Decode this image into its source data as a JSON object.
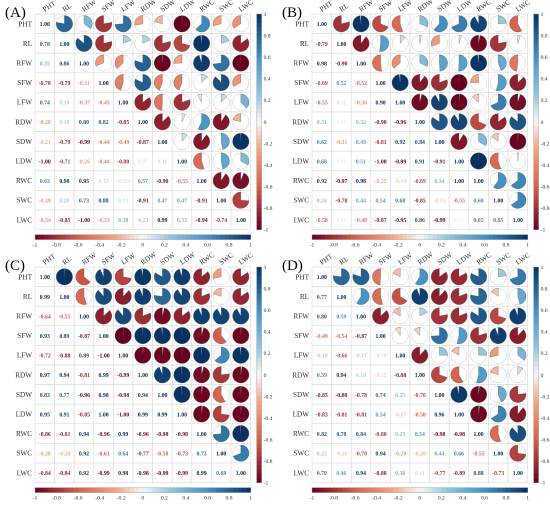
{
  "figure": {
    "colors": {
      "negative": "#67001f",
      "neutral": "#f7f7f7",
      "positive": "#053061",
      "grid": "#d9d9d9",
      "label": "#303030"
    }
  },
  "chart_data": [
    {
      "type": "heatmap",
      "panel_label": "(A)",
      "title": "",
      "variables": [
        "PHT",
        "RL",
        "RFW",
        "SFW",
        "LFW",
        "RDW",
        "SDW",
        "LDW",
        "RWC",
        "SWC",
        "LWC"
      ],
      "colorbar": {
        "range": [
          -1,
          1
        ],
        "ticks": [
          "-1",
          "-0.8",
          "-0.6",
          "-0.4",
          "-0.2",
          "0",
          "0.2",
          "0.4",
          "0.6",
          "0.8",
          "1"
        ]
      },
      "lower_triangle": "numbers",
      "upper_triangle": "pie",
      "matrix": [
        [
          1.0,
          0.78,
          0.35,
          -0.78,
          0.74,
          -0.28,
          -0.21,
          -1.0,
          0.63,
          -0.29,
          -0.34
        ],
        [
          0.78,
          1.0,
          0.86,
          -0.79,
          0.19,
          0.18,
          -0.79,
          -0.71,
          0.98,
          0.2,
          -0.85
        ],
        [
          0.35,
          0.86,
          1.0,
          -0.31,
          -0.37,
          0.8,
          -0.99,
          -0.26,
          0.95,
          0.73,
          -1.0
        ],
        [
          -0.78,
          -0.79,
          -0.31,
          1.0,
          -0.45,
          0.82,
          -0.44,
          -0.44,
          0.13,
          0.88,
          -0.33
        ],
        [
          0.74,
          0.19,
          -0.37,
          -0.45,
          1.0,
          -0.85,
          -0.49,
          -0.8,
          -0.08,
          0.13,
          0.38
        ],
        [
          -0.28,
          0.18,
          0.8,
          0.82,
          -0.85,
          1.0,
          -0.87,
          0.07,
          0.57,
          -0.91,
          -0.21
        ],
        [
          -0.21,
          -0.79,
          -0.99,
          -0.44,
          -0.49,
          -0.87,
          1.0,
          0.11,
          -0.9,
          0.47,
          0.99
        ],
        [
          -1.0,
          -0.71,
          -0.26,
          -0.44,
          -0.8,
          0.07,
          0.11,
          1.0,
          -0.55,
          0.47,
          0.33
        ],
        [
          0.63,
          0.98,
          0.95,
          0.13,
          -0.08,
          0.57,
          -0.9,
          -0.55,
          1.0,
          -0.91,
          -0.94
        ],
        [
          -0.29,
          0.2,
          0.73,
          0.88,
          0.13,
          -0.91,
          0.47,
          0.47,
          -0.91,
          1.0,
          -0.74
        ],
        [
          -0.34,
          -0.85,
          -1.0,
          -0.33,
          0.38,
          -0.21,
          0.99,
          0.33,
          -0.94,
          -0.74,
          1.0
        ]
      ]
    },
    {
      "type": "heatmap",
      "panel_label": "(B)",
      "title": "",
      "variables": [
        "PHT",
        "RL",
        "RFW",
        "SFW",
        "LFW",
        "RDW",
        "SDW",
        "LDW",
        "RWC",
        "SWC",
        "LWC"
      ],
      "colorbar": {
        "range": [
          -1,
          1
        ],
        "ticks": [
          "-1",
          "-0.8",
          "-0.6",
          "-0.4",
          "-0.2",
          "0",
          "0.2",
          "0.4",
          "0.6",
          "0.8",
          "1"
        ]
      },
      "lower_triangle": "numbers",
      "upper_triangle": "pie",
      "matrix": [
        [
          1.0,
          -0.79,
          0.98,
          -0.69,
          -0.55,
          0.31,
          0.62,
          0.68,
          0.92,
          0.24,
          -0.58
        ],
        [
          -0.79,
          1.0,
          -0.9,
          0.52,
          0.11,
          0.03,
          -0.31,
          0.05,
          -0.97,
          -0.78,
          0.05
        ],
        [
          0.98,
          -0.9,
          1.0,
          -0.52,
          -0.36,
          0.32,
          0.49,
          0.51,
          0.98,
          0.44,
          -0.48
        ],
        [
          -0.69,
          0.52,
          -0.52,
          1.0,
          0.98,
          -0.9,
          -0.81,
          -1.0,
          -0.25,
          0.54,
          -0.87
        ],
        [
          -0.55,
          0.11,
          -0.36,
          0.98,
          1.0,
          -0.96,
          0.92,
          -0.99,
          -0.14,
          0.68,
          -0.95
        ],
        [
          0.31,
          0.03,
          0.32,
          -0.9,
          -0.96,
          1.0,
          0.84,
          0.91,
          -0.69,
          -0.85,
          0.86
        ],
        [
          0.62,
          -0.31,
          0.49,
          -0.81,
          0.92,
          0.84,
          1.0,
          -0.91,
          0.34,
          -0.15,
          -0.99
        ],
        [
          0.68,
          0.05,
          0.51,
          -1.0,
          -0.99,
          0.91,
          -0.91,
          1.0,
          1.0,
          -0.55,
          0.02
        ],
        [
          0.92,
          -0.97,
          0.98,
          -0.25,
          -0.14,
          -0.69,
          0.34,
          1.0,
          1.0,
          0.6,
          0.65
        ],
        [
          0.24,
          -0.78,
          0.44,
          0.54,
          0.68,
          -0.85,
          -0.15,
          -0.55,
          0.6,
          1.0,
          0.65
        ],
        [
          -0.58,
          0.05,
          -0.48,
          -0.87,
          -0.95,
          0.86,
          -0.99,
          0.02,
          0.65,
          0.65,
          1.0
        ]
      ]
    },
    {
      "type": "heatmap",
      "panel_label": "(C)",
      "title": "",
      "variables": [
        "PHT",
        "RL",
        "RFW",
        "SFW",
        "LFW",
        "RDW",
        "SDW",
        "LDW",
        "RWC",
        "SWC",
        "LWC"
      ],
      "colorbar": {
        "range": [
          -1,
          1
        ],
        "ticks": [
          "-1",
          "-0.8",
          "-0.6",
          "-0.4",
          "-0.2",
          "0",
          "0.2",
          "0.4",
          "0.6",
          "0.8",
          "1"
        ]
      },
      "lower_triangle": "numbers",
      "upper_triangle": "pie",
      "matrix": [
        [
          1.0,
          0.99,
          -0.64,
          0.93,
          -0.72,
          0.97,
          0.83,
          0.95,
          -0.86,
          -0.28,
          -0.84
        ],
        [
          0.99,
          1.0,
          -0.55,
          0.89,
          -0.88,
          0.94,
          0.77,
          0.91,
          -0.81,
          -0.2,
          -0.84
        ],
        [
          -0.64,
          -0.55,
          1.0,
          -0.87,
          0.89,
          -0.81,
          -0.96,
          -0.85,
          0.94,
          0.92,
          0.92
        ],
        [
          0.93,
          0.89,
          -0.87,
          1.0,
          -1.0,
          0.99,
          0.98,
          1.0,
          -0.96,
          -0.61,
          -0.99
        ],
        [
          -0.72,
          -0.88,
          0.89,
          -1.0,
          1.0,
          -0.99,
          -0.98,
          -1.0,
          0.99,
          0.64,
          0.98
        ],
        [
          0.97,
          0.94,
          -0.81,
          0.99,
          -0.99,
          1.0,
          0.94,
          0.99,
          -0.96,
          -0.77,
          -0.98
        ],
        [
          0.83,
          0.77,
          -0.96,
          0.98,
          -0.98,
          0.94,
          1.0,
          0.99,
          -0.98,
          -0.58,
          -0.99
        ],
        [
          0.95,
          0.91,
          -0.85,
          1.0,
          -1.0,
          0.99,
          0.99,
          1.0,
          -0.98,
          -0.73,
          -0.99
        ],
        [
          -0.86,
          -0.81,
          0.94,
          -0.96,
          0.99,
          -0.96,
          -0.98,
          -0.98,
          1.0,
          0.73,
          0.99
        ],
        [
          -0.28,
          -0.2,
          0.92,
          -0.61,
          0.64,
          -0.77,
          -0.58,
          -0.73,
          0.73,
          1.0,
          0.69
        ],
        [
          -0.84,
          -0.84,
          0.92,
          -0.99,
          0.98,
          -0.98,
          -0.99,
          -0.99,
          0.99,
          0.69,
          1.0
        ]
      ]
    },
    {
      "type": "heatmap",
      "panel_label": "(D)",
      "title": "",
      "variables": [
        "PHT",
        "RL",
        "RFW",
        "SFW",
        "LFW",
        "RDW",
        "SDW",
        "LDW",
        "RWC",
        "SWC",
        "LWC"
      ],
      "colorbar": {
        "range": [
          -1,
          1
        ],
        "ticks": [
          "-1",
          "-0.8",
          "-0.6",
          "-0.4",
          "-0.2",
          "0",
          "0.2",
          "0.4",
          "0.6",
          "0.8",
          "1"
        ]
      },
      "lower_triangle": "numbers",
      "upper_triangle": "pie",
      "matrix": [
        [
          1.0,
          0.77,
          0.8,
          -0.49,
          -0.18,
          0.59,
          -0.85,
          -0.83,
          0.82,
          0.23,
          0.7
        ],
        [
          0.77,
          1.0,
          0.59,
          -0.54,
          -0.66,
          0.94,
          -0.88,
          -0.81,
          0.78,
          -0.16,
          0.46
        ],
        [
          0.8,
          0.59,
          1.0,
          -0.87,
          -0.17,
          0.18,
          -0.78,
          -0.81,
          0.84,
          -0.7,
          0.94
        ],
        [
          -0.49,
          -0.54,
          -0.87,
          1.0,
          -0.1,
          -0.12,
          0.74,
          0.54,
          -0.8,
          0.94,
          -0.88
        ],
        [
          -0.18,
          -0.66,
          -0.17,
          -0.1,
          1.0,
          -0.88,
          0.25,
          -0.17,
          0.25,
          -0.29,
          0.36
        ],
        [
          0.59,
          0.94,
          0.18,
          -0.12,
          -0.88,
          1.0,
          -0.7,
          -0.58,
          0.54,
          -0.2,
          0.11
        ],
        [
          -0.85,
          -0.88,
          -0.78,
          0.74,
          0.25,
          -0.7,
          1.0,
          0.96,
          -0.98,
          0.44,
          -0.77
        ],
        [
          -0.83,
          -0.81,
          -0.81,
          0.54,
          -0.17,
          -0.58,
          0.96,
          1.0,
          -0.98,
          0.66,
          -0.89
        ],
        [
          0.82,
          0.78,
          0.84,
          -0.8,
          0.25,
          0.54,
          -0.98,
          -0.98,
          1.0,
          -0.55,
          0.88
        ],
        [
          0.23,
          -0.16,
          -0.7,
          0.94,
          -0.29,
          -0.2,
          0.44,
          0.66,
          -0.55,
          1.0,
          -0.73
        ],
        [
          0.7,
          0.46,
          0.94,
          -0.88,
          0.36,
          0.11,
          -0.77,
          -0.89,
          0.88,
          -0.73,
          1.0
        ]
      ]
    }
  ]
}
